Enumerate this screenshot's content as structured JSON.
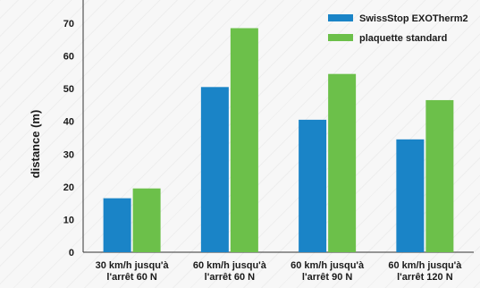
{
  "chart_data": {
    "type": "bar",
    "categories": [
      [
        "30 km/h jusqu'à",
        "l'arrêt 60 N"
      ],
      [
        "60 km/h jusqu'à",
        "l'arrêt 60 N"
      ],
      [
        "60 km/h jusqu'à",
        "l'arrêt 90 N"
      ],
      [
        "60 km/h jusqu'à",
        "l'arrêt 120 N"
      ]
    ],
    "series": [
      {
        "name": "SwissStop EXOTherm2",
        "values": [
          16.5,
          50.5,
          40.5,
          34.5
        ],
        "color": "#1a84c7"
      },
      {
        "name": "plaquette standard",
        "values": [
          19.5,
          68.5,
          54.5,
          46.5
        ],
        "color": "#6cc04a"
      }
    ],
    "ylabel": "distance (m)",
    "xlabel": "",
    "ylim": [
      0,
      70
    ],
    "yticks": [
      0,
      10,
      20,
      30,
      40,
      50,
      60,
      70
    ],
    "grid": false,
    "legend": "top-right"
  }
}
